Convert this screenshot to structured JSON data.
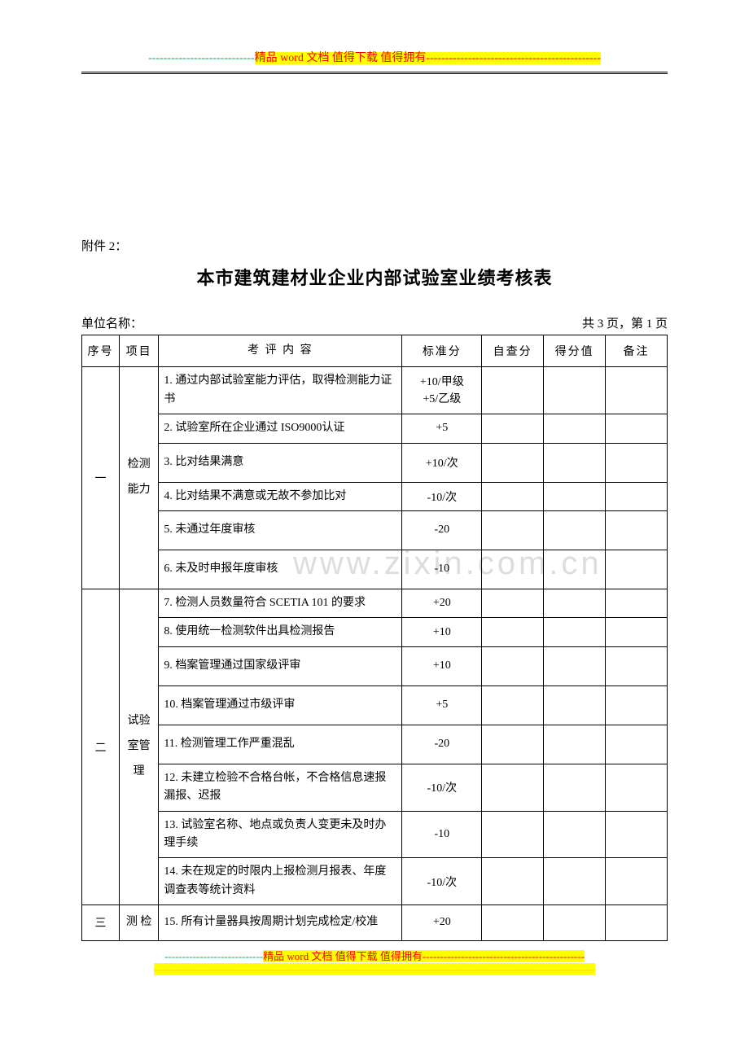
{
  "header": {
    "dashes_green": "----------------------------",
    "text": "精品 word 文档  值得下载  值得拥有",
    "dashes_after": "----------------------------------------------"
  },
  "attachment_label": "附件 2：",
  "title": "本市建筑建材业企业内部试验室业绩考核表",
  "unit_label": "单位名称：",
  "page_info": "共 3 页，第 1 页",
  "columns": {
    "seq": "序号",
    "item": "项目",
    "content": "考  评  内  容",
    "score": "标准分",
    "self": "自查分",
    "final": "得分值",
    "note": "备注"
  },
  "sections": [
    {
      "seq": "一",
      "item": "检测能力",
      "rows": [
        {
          "content": "1. 通过内部试验室能力评估，取得检测能力证书",
          "score": "+10/甲级\n+5/乙级"
        },
        {
          "content": "2. 试验室所在企业通过 ISO9000认证",
          "score": "+5"
        },
        {
          "content": "3. 比对结果满意",
          "score": "+10/次"
        },
        {
          "content": "4. 比对结果不满意或无故不参加比对",
          "score": "-10/次"
        },
        {
          "content": "5. 未通过年度审核",
          "score": "-20"
        },
        {
          "content": "6. 未及时申报年度审核",
          "score": "-10"
        }
      ]
    },
    {
      "seq": "二",
      "item": "试验室管理",
      "rows": [
        {
          "content": "7. 检测人员数量符合 SCETIA 101 的要求",
          "score": "+20"
        },
        {
          "content": "8. 使用统一检测软件出具检测报告",
          "score": "+10"
        },
        {
          "content": "9. 档案管理通过国家级评审",
          "score": "+10"
        },
        {
          "content": "10. 档案管理通过市级评审",
          "score": "+5"
        },
        {
          "content": "11. 检测管理工作严重混乱",
          "score": "-20"
        },
        {
          "content": "12. 未建立检验不合格台帐，不合格信息速报漏报、迟报",
          "score": "-10/次"
        },
        {
          "content": "13. 试验室名称、地点或负责人变更未及时办理手续",
          "score": "-10"
        },
        {
          "content": "14. 未在规定的时限内上报检测月报表、年度调查表等统计资料",
          "score": "-10/次"
        }
      ]
    },
    {
      "seq": "三",
      "item": "测 检",
      "rows": [
        {
          "content": "15. 所有计量器具按周期计划完成检定/校准",
          "score": "+20"
        }
      ]
    }
  ],
  "footer": {
    "dashes_green": "----------------------------",
    "text": "精品 word 文档  值得下载  值得拥有",
    "dashes_after": "----------------------------------------------",
    "bottom_dashes": "-----------------------------------------------------------------------------------------------------------------------------"
  },
  "watermark": "www.zixin.com.cn"
}
